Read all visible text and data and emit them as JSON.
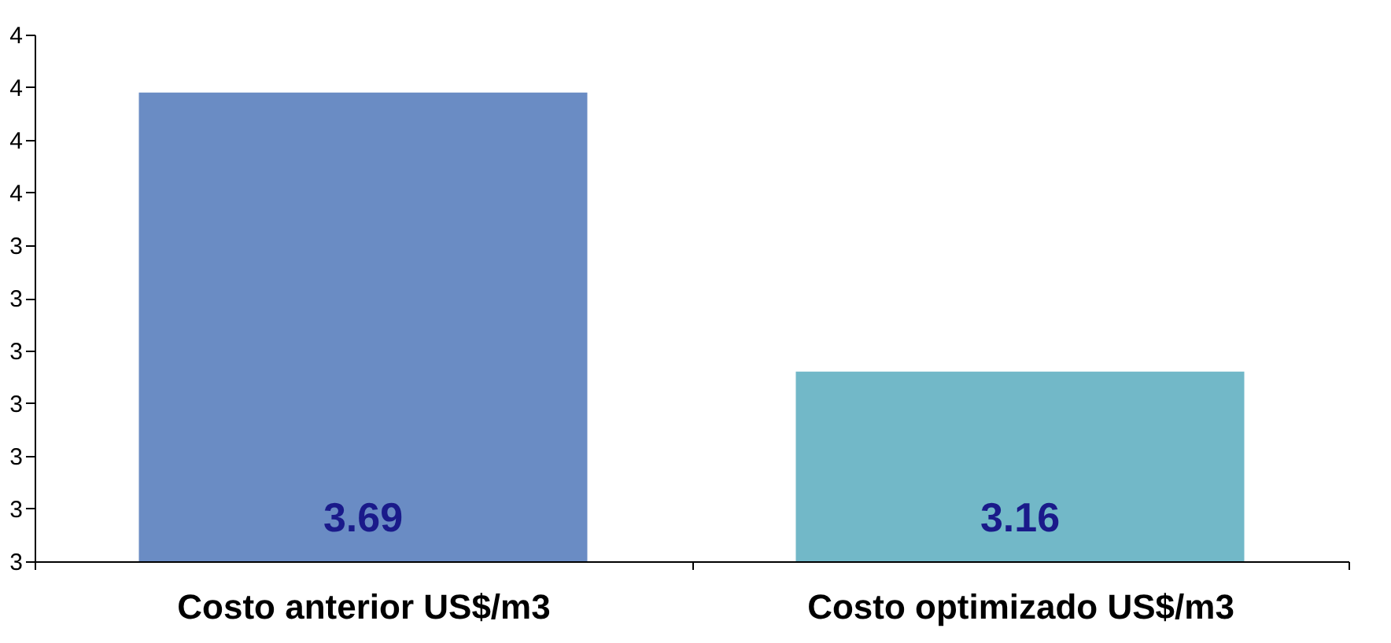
{
  "chart_data": {
    "type": "bar",
    "categories": [
      "Costo anterior US$/m3",
      "Costo optimizado US$/m3"
    ],
    "values": [
      3.69,
      3.16
    ],
    "colors": [
      "#6a8cc4",
      "#72b8c8"
    ],
    "data_labels": true,
    "ylim": [
      2.8,
      3.8
    ],
    "yticks": [
      {
        "value": 2.8,
        "label": "3"
      },
      {
        "value": 2.9,
        "label": "3"
      },
      {
        "value": 3.0,
        "label": "3"
      },
      {
        "value": 3.1,
        "label": "3"
      },
      {
        "value": 3.2,
        "label": "3"
      },
      {
        "value": 3.3,
        "label": "3"
      },
      {
        "value": 3.4,
        "label": "3"
      },
      {
        "value": 3.5,
        "label": "4"
      },
      {
        "value": 3.6,
        "label": "4"
      },
      {
        "value": 3.7,
        "label": "4"
      },
      {
        "value": 3.8,
        "label": "4"
      }
    ],
    "grid": false
  }
}
